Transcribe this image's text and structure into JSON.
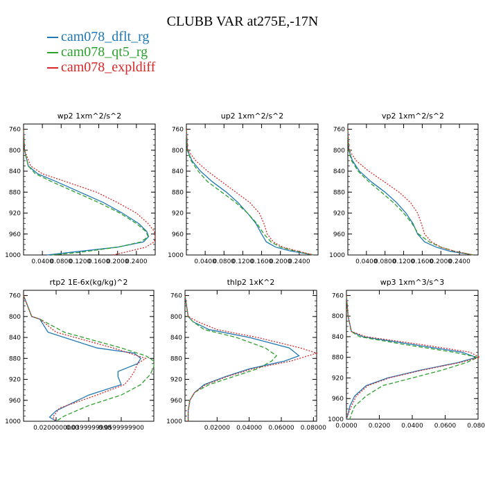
{
  "header": {
    "title": "CLUBB VAR at275E,-17N"
  },
  "legend": [
    {
      "name": "cam078_dflt_rg",
      "color": "#1f77b4",
      "dash": "solid"
    },
    {
      "name": "cam078_qt5_rg",
      "color": "#2ca02c",
      "dash": "dashed"
    },
    {
      "name": "cam078_expldiff",
      "color": "#d62728",
      "dash": "dotted"
    }
  ],
  "chart_data": [
    {
      "type": "line",
      "title": "wp2   1xm^2/s^2",
      "xlabel": "",
      "ylabel": "",
      "xlim": [
        0.0,
        0.28
      ],
      "ylim": [
        1000,
        750
      ],
      "y_inverted": true,
      "x_tick_labels": [
        "0.0400",
        "0.0800",
        "0.1200",
        "0.1600",
        "0.2000",
        "0.2400"
      ],
      "x_ticks": [
        0.04,
        0.08,
        0.12,
        0.16,
        0.2,
        0.24
      ],
      "y_ticks": [
        760,
        800,
        840,
        880,
        920,
        960,
        1000
      ],
      "series": [
        {
          "name": "cam078_dflt_rg",
          "y": [
            760,
            800,
            830,
            845,
            860,
            880,
            900,
            920,
            940,
            955,
            965,
            975,
            985,
            995,
            1000
          ],
          "x": [
            0.0,
            0.002,
            0.01,
            0.03,
            0.07,
            0.12,
            0.17,
            0.21,
            0.245,
            0.262,
            0.266,
            0.255,
            0.2,
            0.1,
            0.05
          ]
        },
        {
          "name": "cam078_qt5_rg",
          "y": [
            760,
            800,
            830,
            845,
            860,
            880,
            900,
            920,
            940,
            955,
            965,
            975,
            985,
            995,
            1000
          ],
          "x": [
            0.0,
            0.002,
            0.01,
            0.025,
            0.06,
            0.11,
            0.16,
            0.205,
            0.24,
            0.26,
            0.265,
            0.25,
            0.2,
            0.12,
            0.06
          ]
        },
        {
          "name": "cam078_expldiff",
          "y": [
            760,
            800,
            830,
            845,
            860,
            880,
            900,
            920,
            940,
            955,
            965,
            975,
            985,
            995,
            1000
          ],
          "x": [
            0.0,
            0.002,
            0.015,
            0.04,
            0.09,
            0.155,
            0.2,
            0.24,
            0.265,
            0.278,
            0.28,
            0.278,
            0.26,
            0.215,
            0.19
          ]
        }
      ]
    },
    {
      "type": "line",
      "title": "up2   1xm^2/s^2",
      "xlabel": "",
      "ylabel": "",
      "xlim": [
        0.0,
        0.28
      ],
      "ylim": [
        1000,
        750
      ],
      "y_inverted": true,
      "x_tick_labels": [
        "0.0400",
        "0.0800",
        "0.1200",
        "0.1600",
        "0.2000",
        "0.2400"
      ],
      "x_ticks": [
        0.04,
        0.08,
        0.12,
        0.16,
        0.2,
        0.24
      ],
      "y_ticks": [
        760,
        800,
        840,
        880,
        920,
        960,
        1000
      ],
      "series": [
        {
          "name": "cam078_dflt_rg",
          "y": [
            760,
            800,
            820,
            840,
            860,
            880,
            900,
            920,
            940,
            960,
            975,
            985,
            992,
            1000
          ],
          "x": [
            0.0,
            0.002,
            0.012,
            0.03,
            0.055,
            0.085,
            0.11,
            0.13,
            0.148,
            0.16,
            0.17,
            0.19,
            0.22,
            0.27
          ]
        },
        {
          "name": "cam078_qt5_rg",
          "y": [
            760,
            800,
            820,
            840,
            860,
            880,
            900,
            920,
            940,
            960,
            975,
            985,
            992,
            1000
          ],
          "x": [
            0.0,
            0.002,
            0.01,
            0.025,
            0.045,
            0.075,
            0.105,
            0.13,
            0.15,
            0.165,
            0.18,
            0.2,
            0.23,
            0.27
          ]
        },
        {
          "name": "cam078_expldiff",
          "y": [
            760,
            800,
            820,
            840,
            860,
            880,
            900,
            920,
            940,
            960,
            975,
            985,
            992,
            1000
          ],
          "x": [
            0.0,
            0.003,
            0.02,
            0.045,
            0.075,
            0.105,
            0.135,
            0.155,
            0.165,
            0.172,
            0.185,
            0.205,
            0.235,
            0.27
          ]
        }
      ]
    },
    {
      "type": "line",
      "title": "vp2   1xm^2/s^2",
      "xlabel": "",
      "ylabel": "",
      "xlim": [
        0.0,
        0.28
      ],
      "ylim": [
        1000,
        750
      ],
      "y_inverted": true,
      "x_tick_labels": [
        "0.0400",
        "0.0800",
        "0.1200",
        "0.1600",
        "0.2000",
        "0.2400"
      ],
      "x_ticks": [
        0.04,
        0.08,
        0.12,
        0.16,
        0.2,
        0.24
      ],
      "y_ticks": [
        760,
        800,
        840,
        880,
        920,
        960,
        1000
      ],
      "series": [
        {
          "name": "cam078_dflt_rg",
          "y": [
            760,
            800,
            820,
            840,
            860,
            880,
            900,
            920,
            940,
            960,
            975,
            985,
            993,
            1000
          ],
          "x": [
            0.0,
            0.002,
            0.01,
            0.025,
            0.05,
            0.08,
            0.105,
            0.125,
            0.14,
            0.15,
            0.165,
            0.19,
            0.22,
            0.27
          ]
        },
        {
          "name": "cam078_qt5_rg",
          "y": [
            760,
            800,
            820,
            840,
            860,
            880,
            900,
            920,
            940,
            960,
            975,
            985,
            993,
            1000
          ],
          "x": [
            0.0,
            0.002,
            0.008,
            0.022,
            0.045,
            0.072,
            0.098,
            0.12,
            0.138,
            0.152,
            0.175,
            0.2,
            0.23,
            0.27
          ]
        },
        {
          "name": "cam078_expldiff",
          "y": [
            760,
            800,
            820,
            840,
            860,
            880,
            900,
            920,
            940,
            960,
            975,
            985,
            993,
            1000
          ],
          "x": [
            0.0,
            0.003,
            0.018,
            0.045,
            0.078,
            0.11,
            0.135,
            0.15,
            0.158,
            0.165,
            0.18,
            0.2,
            0.23,
            0.27
          ]
        }
      ]
    },
    {
      "type": "line",
      "title": "rtp2   1E-6x(kg/kg)^2",
      "xlabel": "",
      "ylabel": "",
      "xlim": [
        0.0,
        0.08
      ],
      "ylim": [
        1000,
        750
      ],
      "y_inverted": true,
      "x_tick_labels": [
        "0.0200000000",
        "0.0399999998",
        "0.0599999900"
      ],
      "x_ticks": [
        0.02,
        0.04,
        0.06
      ],
      "y_ticks": [
        760,
        800,
        840,
        880,
        920,
        960,
        1000
      ],
      "series": [
        {
          "name": "cam078_dflt_rg",
          "y": [
            760,
            800,
            805,
            830,
            860,
            870,
            880,
            890,
            905,
            915,
            930,
            950,
            980,
            992,
            1000
          ],
          "x": [
            0.0,
            0.005,
            0.01,
            0.015,
            0.045,
            0.068,
            0.072,
            0.07,
            0.058,
            0.058,
            0.06,
            0.04,
            0.02,
            0.016,
            0.02
          ]
        },
        {
          "name": "cam078_qt5_rg",
          "y": [
            760,
            800,
            805,
            830,
            860,
            875,
            885,
            895,
            910,
            930,
            950,
            970,
            990,
            1000
          ],
          "x": [
            0.0,
            0.005,
            0.01,
            0.025,
            0.06,
            0.075,
            0.08,
            0.08,
            0.078,
            0.072,
            0.06,
            0.04,
            0.025,
            0.02
          ]
        },
        {
          "name": "cam078_expldiff",
          "y": [
            760,
            800,
            805,
            830,
            860,
            875,
            880,
            890,
            905,
            915,
            930,
            950,
            975,
            992,
            1000
          ],
          "x": [
            0.0,
            0.005,
            0.01,
            0.02,
            0.055,
            0.07,
            0.075,
            0.07,
            0.068,
            0.066,
            0.062,
            0.045,
            0.022,
            0.018,
            0.02
          ]
        }
      ]
    },
    {
      "type": "line",
      "title": "thlp2   1xK^2",
      "xlabel": "",
      "ylabel": "",
      "xlim": [
        0.0,
        0.082
      ],
      "ylim": [
        1000,
        750
      ],
      "y_inverted": true,
      "x_tick_labels": [
        "0.02000",
        "0.04000",
        "0.06000",
        "0.08000"
      ],
      "x_ticks": [
        0.02,
        0.04,
        0.06,
        0.08
      ],
      "y_ticks": [
        760,
        800,
        840,
        880,
        920,
        960,
        1000
      ],
      "series": [
        {
          "name": "cam078_dflt_rg",
          "y": [
            760,
            800,
            810,
            825,
            840,
            860,
            875,
            885,
            900,
            915,
            930,
            945,
            960,
            980,
            1000
          ],
          "x": [
            0.0,
            0.002,
            0.005,
            0.015,
            0.04,
            0.065,
            0.071,
            0.062,
            0.04,
            0.025,
            0.012,
            0.006,
            0.003,
            0.002,
            0.002
          ]
        },
        {
          "name": "cam078_qt5_rg",
          "y": [
            760,
            800,
            810,
            825,
            840,
            860,
            875,
            885,
            900,
            915,
            930,
            945,
            960,
            980,
            1000
          ],
          "x": [
            0.0,
            0.002,
            0.005,
            0.012,
            0.032,
            0.05,
            0.057,
            0.054,
            0.045,
            0.03,
            0.015,
            0.006,
            0.003,
            0.002,
            0.002
          ]
        },
        {
          "name": "cam078_expldiff",
          "y": [
            760,
            800,
            810,
            825,
            840,
            860,
            870,
            885,
            900,
            915,
            930,
            945,
            960,
            980,
            1000
          ],
          "x": [
            0.0,
            0.002,
            0.008,
            0.02,
            0.045,
            0.072,
            0.082,
            0.066,
            0.042,
            0.026,
            0.013,
            0.006,
            0.003,
            0.002,
            0.002
          ]
        }
      ]
    },
    {
      "type": "line",
      "title": "wp3   1xm^3/s^3",
      "xlabel": "",
      "ylabel": "",
      "xlim": [
        0.0,
        0.08
      ],
      "ylim": [
        1000,
        750
      ],
      "y_inverted": true,
      "x_tick_labels": [
        "0.0000",
        "0.0200",
        "0.0400",
        "0.0600",
        "0.0800"
      ],
      "x_ticks": [
        0.0,
        0.02,
        0.04,
        0.06,
        0.08
      ],
      "y_ticks": [
        760,
        800,
        840,
        880,
        920,
        960,
        1000
      ],
      "series": [
        {
          "name": "cam078_dflt_rg",
          "y": [
            760,
            800,
            830,
            840,
            855,
            870,
            880,
            890,
            905,
            920,
            935,
            955,
            975,
            990,
            1000
          ],
          "x": [
            0.0,
            0.001,
            0.003,
            0.01,
            0.04,
            0.07,
            0.079,
            0.068,
            0.045,
            0.025,
            0.012,
            0.005,
            0.002,
            0.001,
            0.0
          ]
        },
        {
          "name": "cam078_qt5_rg",
          "y": [
            760,
            800,
            830,
            840,
            855,
            870,
            880,
            890,
            905,
            920,
            935,
            955,
            975,
            990,
            1000
          ],
          "x": [
            0.0,
            0.001,
            0.003,
            0.008,
            0.035,
            0.065,
            0.08,
            0.073,
            0.058,
            0.04,
            0.022,
            0.012,
            0.005,
            0.003,
            0.002
          ]
        },
        {
          "name": "cam078_expldiff",
          "y": [
            760,
            800,
            830,
            840,
            855,
            870,
            880,
            890,
            905,
            920,
            935,
            955,
            975,
            990,
            1000
          ],
          "x": [
            0.0,
            0.001,
            0.003,
            0.012,
            0.045,
            0.075,
            0.081,
            0.069,
            0.046,
            0.026,
            0.013,
            0.006,
            0.003,
            0.001,
            0.0
          ]
        }
      ]
    }
  ]
}
